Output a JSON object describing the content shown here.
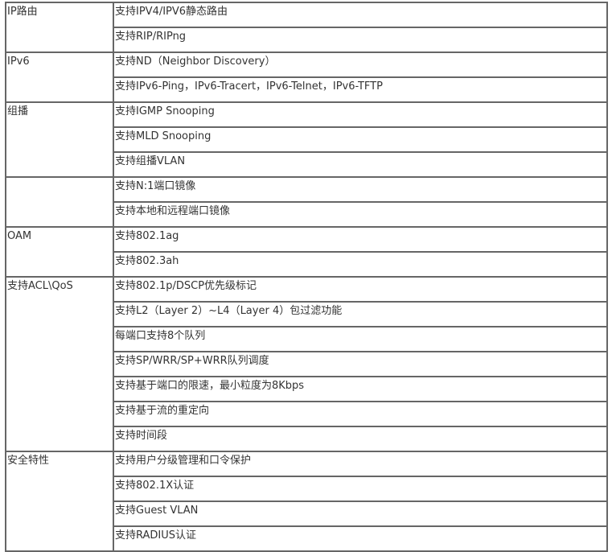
{
  "groups": [
    {
      "label": "IP路由",
      "items": [
        "支持IPV4/IPV6静态路由",
        "支持RIP/RIPng"
      ]
    },
    {
      "label": "IPv6",
      "items": [
        "支持ND（Neighbor Discovery）",
        "支持IPv6-Ping，IPv6-Tracert，IPv6-Telnet，IPv6-TFTP"
      ]
    },
    {
      "label": "组播",
      "items": [
        "支持IGMP Snooping",
        "支持MLD Snooping",
        "支持组播VLAN"
      ]
    },
    {
      "label": "",
      "items": [
        "支持N:1端口镜像",
        "支持本地和远程端口镜像"
      ]
    },
    {
      "label": "OAM",
      "items": [
        "支持802.1ag",
        "支持802.3ah"
      ]
    },
    {
      "label": "支持ACL\\QoS",
      "items": [
        "支持802.1p/DSCP优先级标记",
        "支持L2（Layer 2）~L4（Layer 4）包过滤功能",
        "每端口支持8个队列",
        "支持SP/WRR/SP+WRR队列调度",
        "支持基于端口的限速，最小粒度为8Kbps",
        "支持基于流的重定向",
        "支持时间段"
      ]
    },
    {
      "label": "安全特性",
      "items": [
        "支持用户分级管理和口令保护",
        "支持802.1X认证",
        "支持Guest VLAN",
        "支持RADIUS认证"
      ]
    }
  ]
}
